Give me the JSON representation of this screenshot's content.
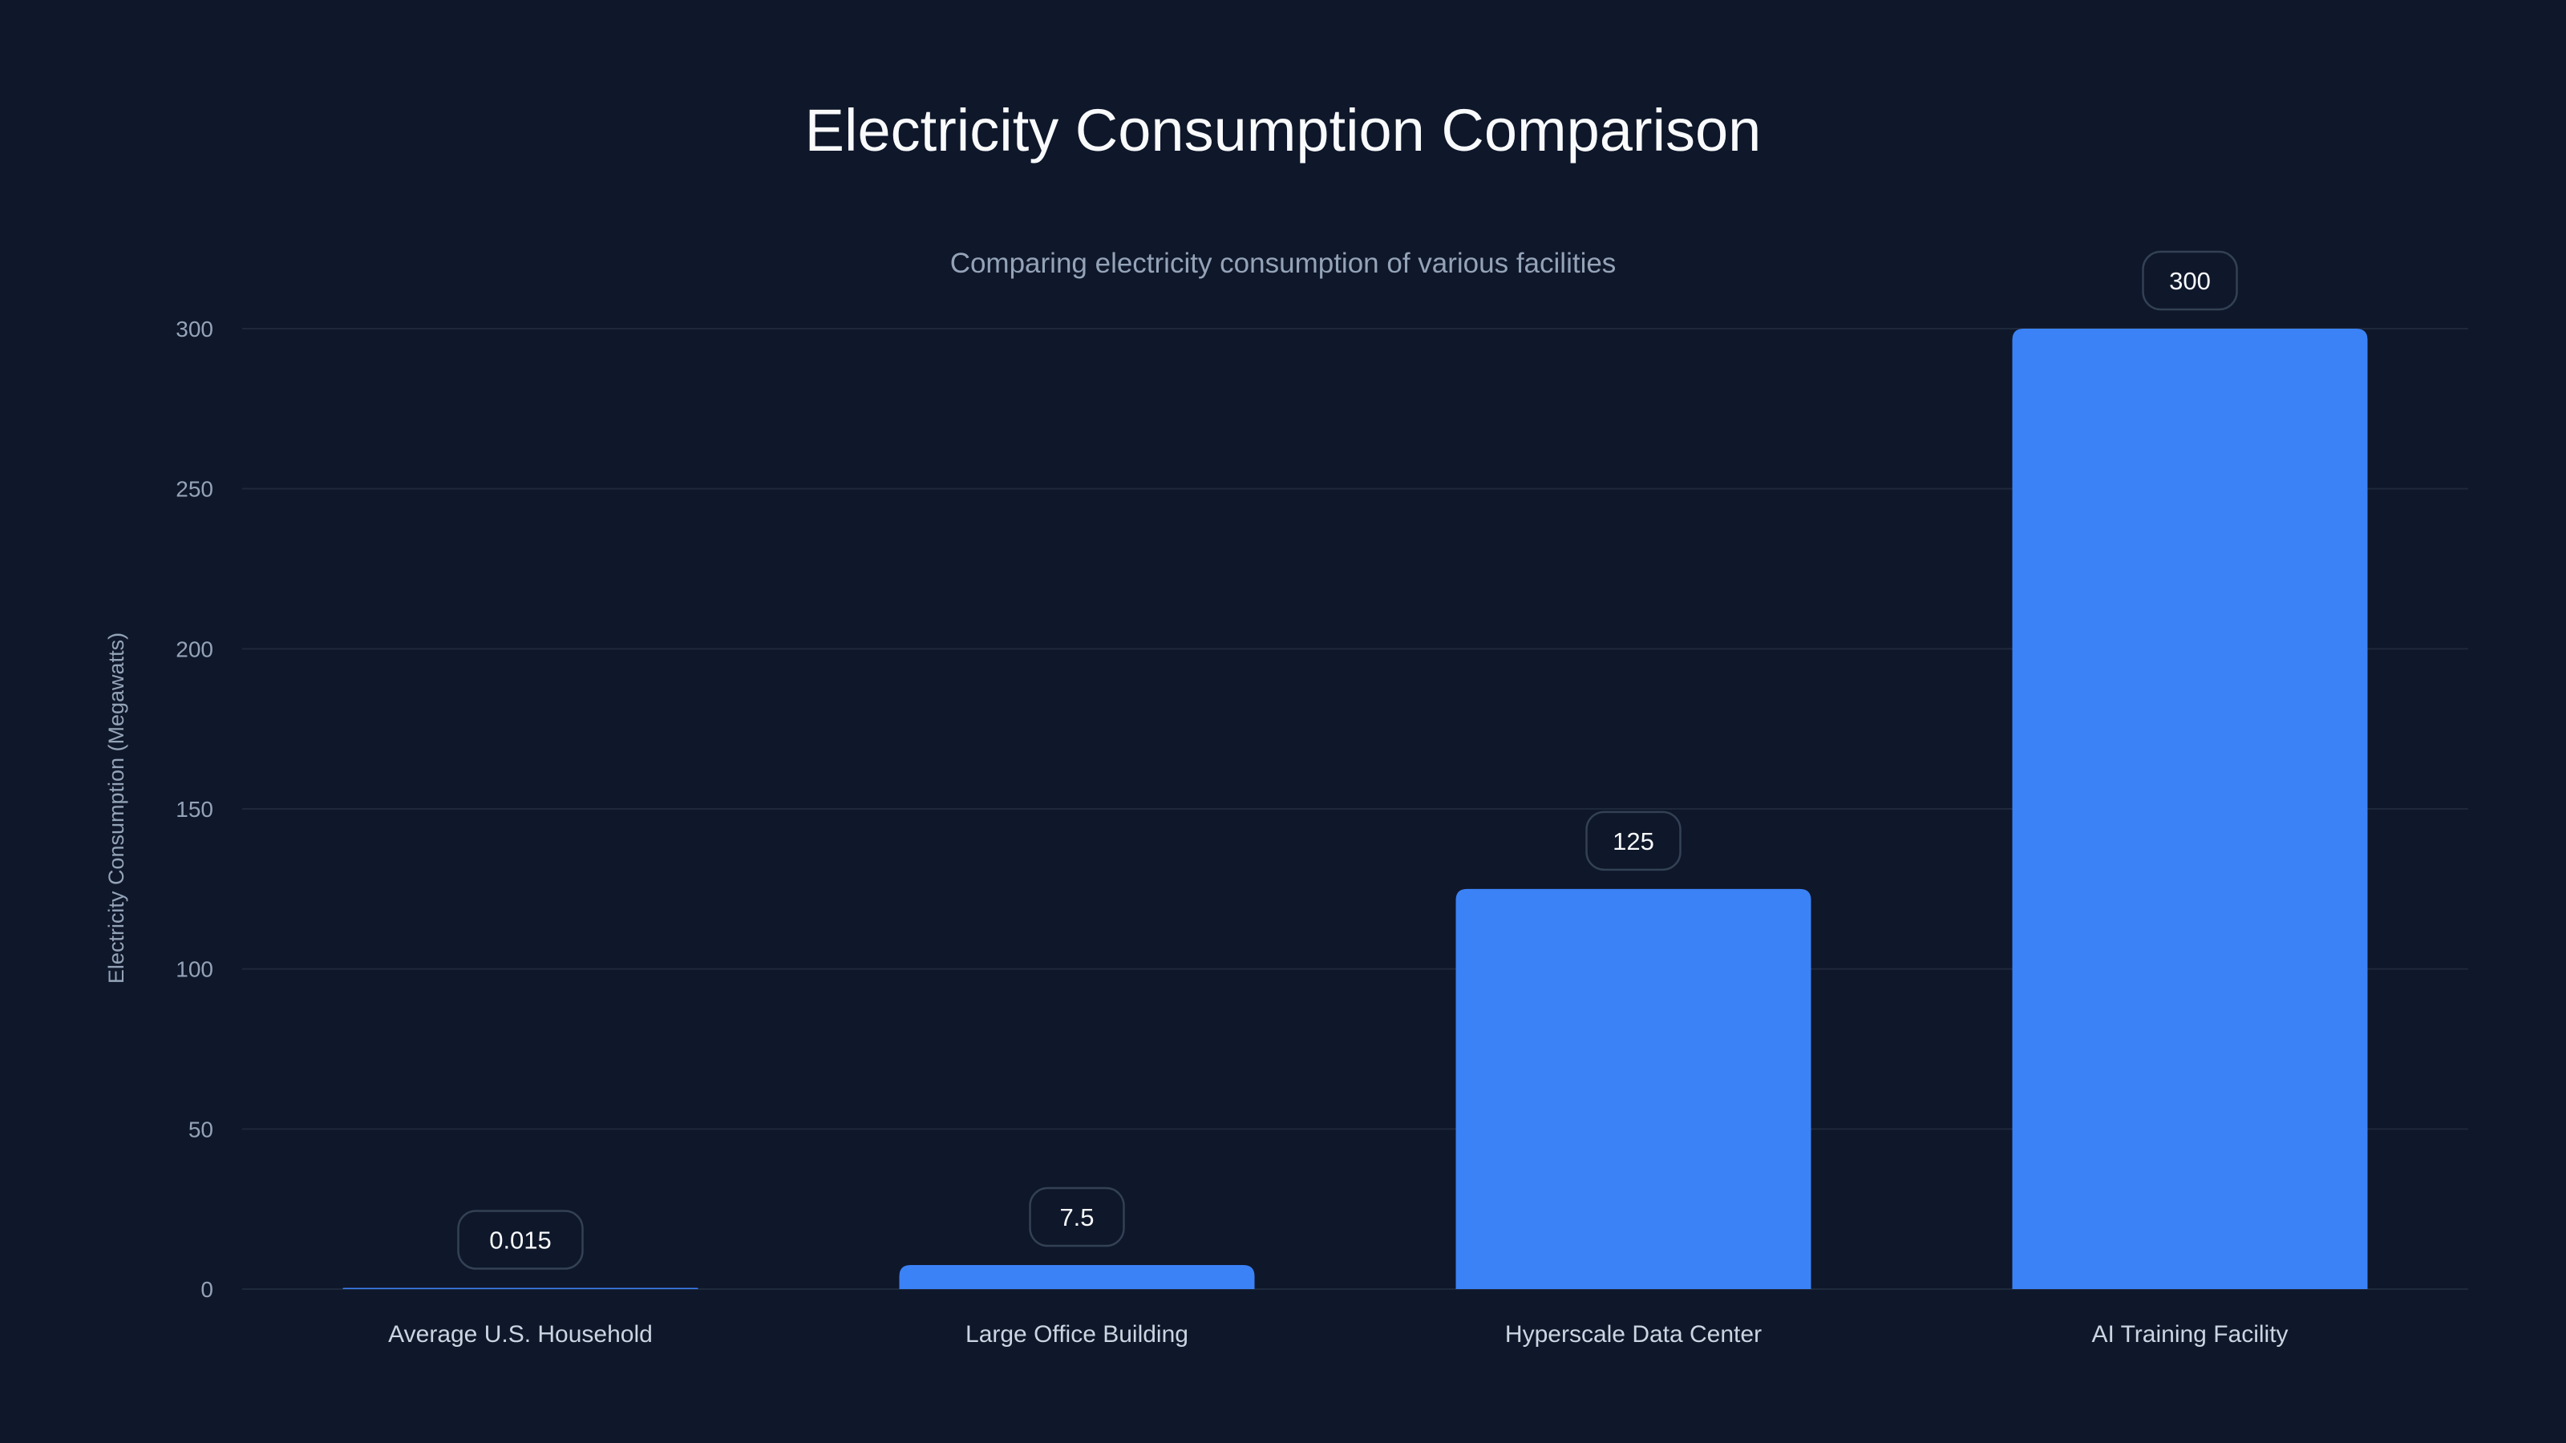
{
  "chart_data": {
    "type": "bar",
    "title": "Electricity Consumption Comparison",
    "subtitle": "Comparing electricity consumption of various facilities",
    "xlabel": "",
    "ylabel": "Electricity Consumption (Megawatts)",
    "categories": [
      "Average U.S. Household",
      "Large Office Building",
      "Hyperscale Data Center",
      "AI Training Facility"
    ],
    "values": [
      0.015,
      7.5,
      125,
      300
    ],
    "data_labels": [
      "0.015",
      "7.5",
      "125",
      "300"
    ],
    "ylim": [
      0,
      300
    ],
    "yticks": [
      0,
      50,
      100,
      150,
      200,
      250,
      300
    ],
    "grid": true,
    "legend": "none",
    "colors": {
      "bar": "#3b82f6",
      "background": "#0f172a",
      "grid": "#1e293b",
      "label_border": "#334155"
    }
  }
}
